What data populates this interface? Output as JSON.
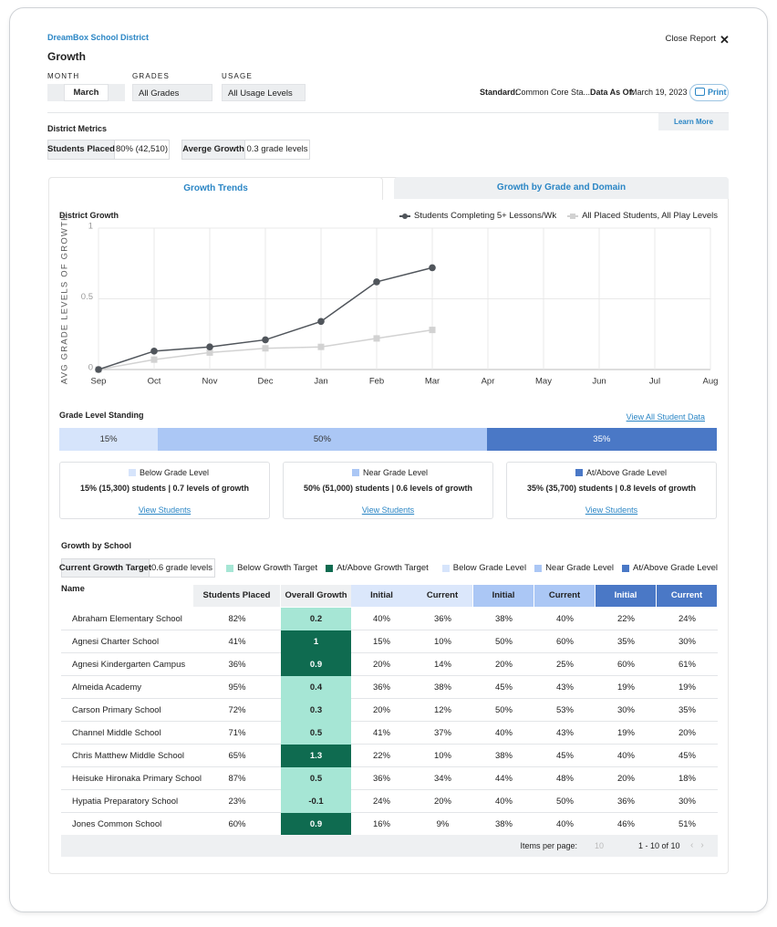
{
  "header": {
    "org": "DreamBox School District",
    "title": "Growth",
    "close": "Close Report"
  },
  "filters": [
    {
      "label": "MONTH",
      "value": "March"
    },
    {
      "label": "GRADES",
      "value": "All Grades"
    },
    {
      "label": "USAGE",
      "value": "All Usage Levels"
    }
  ],
  "info": {
    "standard_label": "Standard:",
    "standard": "Common Core Sta...",
    "as_of_label": "Data As Of:",
    "as_of": "March 19, 2023",
    "print": "Print",
    "learn_more": "Learn More"
  },
  "metrics": {
    "title": "District Metrics",
    "items": [
      {
        "label": "Students Placed",
        "value": "80% (42,510)"
      },
      {
        "label": "Averge Growth",
        "value": "0.3 grade levels"
      }
    ]
  },
  "tabs": [
    "Growth Trends",
    "Growth by Grade and Domain"
  ],
  "chart_data": {
    "type": "line",
    "title": "District Growth",
    "y_label": "AVG GRADE LEVELS OF GROWTH",
    "categories": [
      "Sep",
      "Oct",
      "Nov",
      "Dec",
      "Jan",
      "Feb",
      "Mar",
      "Apr",
      "May",
      "Jun",
      "Jul",
      "Aug"
    ],
    "series": [
      {
        "name": "Students Completing 5+ Lessons/Wk",
        "color": "#50555b",
        "marker": "circle",
        "values": [
          0,
          0.13,
          0.16,
          0.21,
          0.34,
          0.62,
          0.72,
          null,
          null,
          null,
          null,
          null
        ]
      },
      {
        "name": "All Placed Students, All Play Levels",
        "color": "#d2d2d2",
        "marker": "square",
        "values": [
          0,
          0.07,
          0.12,
          0.15,
          0.16,
          0.22,
          0.28,
          null,
          null,
          null,
          null,
          null
        ]
      }
    ],
    "ylim": [
      0,
      1
    ],
    "yticks": [
      0,
      0.5,
      1
    ],
    "grid": true,
    "legend": "top-right"
  },
  "standing": {
    "title": "Grade Level Standing",
    "link": "View All Student Data",
    "segments": [
      {
        "name": "Below Grade Level",
        "value": 15,
        "value_label": "15%",
        "color": "#d6e4fb",
        "text_color": "#333",
        "detail": "15% (15,300) students | 0.7 levels of growth",
        "link": "View Students"
      },
      {
        "name": "Near Grade Level",
        "value": 50,
        "value_label": "50%",
        "color": "#abc7f5",
        "text_color": "#333",
        "detail": "50% (51,000) students | 0.6 levels of growth",
        "link": "View Students"
      },
      {
        "name": "At/Above Grade Level",
        "value": 35,
        "value_label": "35%",
        "color": "#4a78c6",
        "text_color": "#fff",
        "detail": "35% (35,700) students | 0.8 levels of growth",
        "link": "View Students"
      }
    ]
  },
  "school": {
    "title": "Growth by School",
    "target": {
      "label": "Current Growth Target",
      "value": "0.6 grade levels"
    },
    "legend": [
      {
        "name": "Below Growth Target",
        "color": "#a6e6d5"
      },
      {
        "name": "At/Above Growth Target",
        "color": "#0f6b50"
      },
      {
        "name": "Below Grade Level",
        "color": "#d6e4fb"
      },
      {
        "name": "Near Grade Level",
        "color": "#abc7f5"
      },
      {
        "name": "At/Above Grade Level",
        "color": "#4a78c6"
      }
    ],
    "columns": [
      {
        "label": "Name",
        "color": "#eef0f2"
      },
      {
        "label": "Students Placed",
        "color": "#eef0f2"
      },
      {
        "label": "Overall Growth",
        "color": "#eef0f2"
      },
      {
        "label": "Initial",
        "color": "#dbe7fb"
      },
      {
        "label": "Current",
        "color": "#dbe7fb"
      },
      {
        "label": "Initial",
        "color": "#abc7f5"
      },
      {
        "label": "Current",
        "color": "#abc7f5"
      },
      {
        "label": "Initial",
        "color": "#4a78c6"
      },
      {
        "label": "Current",
        "color": "#4a78c6"
      }
    ],
    "rows": [
      [
        "Abraham Elementary School",
        "82%",
        "0.2",
        "40%",
        "36%",
        "38%",
        "40%",
        "22%",
        "24%"
      ],
      [
        "Agnesi Charter School",
        "41%",
        "1",
        "15%",
        "10%",
        "50%",
        "60%",
        "35%",
        "30%"
      ],
      [
        "Agnesi Kindergarten Campus",
        "36%",
        "0.9",
        "20%",
        "14%",
        "20%",
        "25%",
        "60%",
        "61%"
      ],
      [
        "Almeida Academy",
        "95%",
        "0.4",
        "36%",
        "38%",
        "45%",
        "43%",
        "19%",
        "19%"
      ],
      [
        "Carson Primary School",
        "72%",
        "0.3",
        "20%",
        "12%",
        "50%",
        "53%",
        "30%",
        "35%"
      ],
      [
        "Channel Middle School",
        "71%",
        "0.5",
        "41%",
        "37%",
        "40%",
        "43%",
        "19%",
        "20%"
      ],
      [
        "Chris Matthew Middle School",
        "65%",
        "1.3",
        "22%",
        "10%",
        "38%",
        "45%",
        "40%",
        "45%"
      ],
      [
        "Heisuke Hironaka Primary School",
        "87%",
        "0.5",
        "36%",
        "34%",
        "44%",
        "48%",
        "20%",
        "18%"
      ],
      [
        "Hypatia Preparatory School",
        "23%",
        "-0.1",
        "24%",
        "20%",
        "40%",
        "50%",
        "36%",
        "30%"
      ],
      [
        "Jones Common School",
        "60%",
        "0.9",
        "16%",
        "9%",
        "38%",
        "40%",
        "46%",
        "51%"
      ]
    ],
    "pagination": {
      "label": "Items per page:",
      "size": "10",
      "range": "1 - 10 of 10"
    }
  }
}
